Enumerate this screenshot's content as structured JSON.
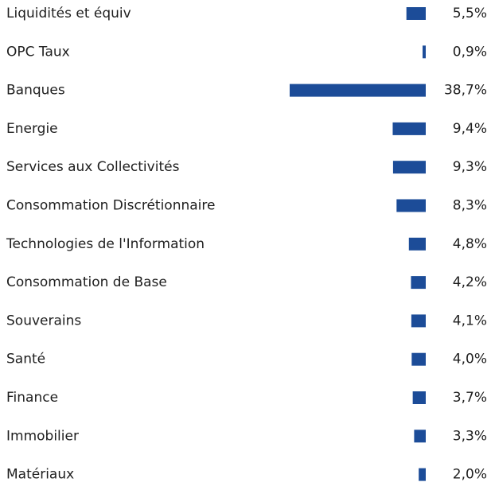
{
  "chart_data": {
    "type": "bar",
    "orientation": "horizontal",
    "color": "#1c4c98",
    "categories": [
      "Liquidités et équiv",
      "OPC Taux",
      "Banques",
      "Energie",
      "Services aux Collectivités",
      "Consommation Discrétionnaire",
      "Technologies de l'Information",
      "Consommation de Base",
      "Souverains",
      "Santé",
      "Finance",
      "Immobilier",
      "Matériaux"
    ],
    "values": [
      5.5,
      0.9,
      38.7,
      9.4,
      9.3,
      8.3,
      4.8,
      4.2,
      4.1,
      4.0,
      3.7,
      3.3,
      2.0
    ],
    "value_labels": [
      "5,5%",
      "0,9%",
      "38,7%",
      "9,4%",
      "9,3%",
      "8,3%",
      "4,8%",
      "4,2%",
      "4,1%",
      "4,0%",
      "3,7%",
      "3,3%",
      "2,0%"
    ]
  }
}
